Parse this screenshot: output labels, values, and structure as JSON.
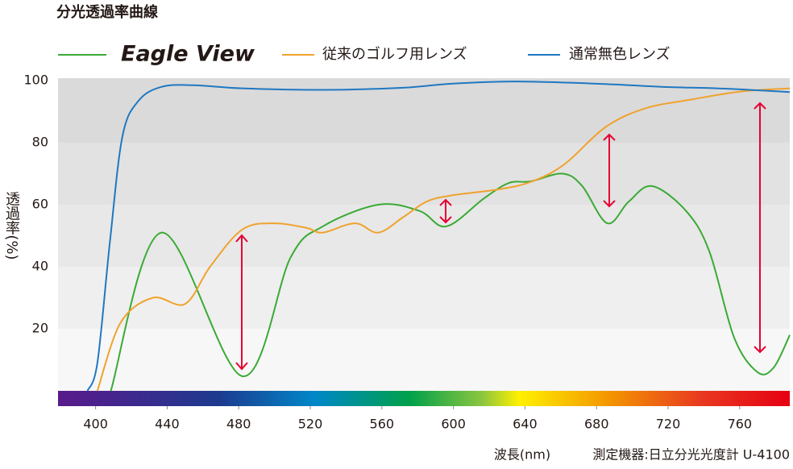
{
  "title": "分光透過率曲線",
  "chart_data": {
    "type": "line",
    "y_label": "透過率(%)",
    "x_label": "波長(nm)",
    "note": "測定機器:日立分光光度計 U-4100",
    "xlim": [
      379,
      788
    ],
    "ylim": [
      0,
      100
    ],
    "xticks": [
      400,
      440,
      480,
      520,
      560,
      600,
      640,
      680,
      720,
      760
    ],
    "yticks": [
      20,
      40,
      60,
      80,
      100
    ],
    "series": [
      {
        "name": "Eagle View",
        "color": "#3aaa35",
        "x": [
          408.5,
          437,
          482,
          509,
          527,
          558,
          581,
          596,
          617,
          631,
          643,
          661,
          672,
          686,
          698,
          711,
          730,
          743,
          757,
          770,
          779,
          788
        ],
        "values": [
          0,
          51,
          4.7,
          43,
          53,
          60,
          58,
          53,
          62,
          67,
          67.5,
          70,
          66,
          54,
          61,
          66,
          58,
          45,
          17,
          6,
          7.5,
          18
        ]
      },
      {
        "name": "従来のゴルフ用レンズ",
        "color": "#f0a22e",
        "x": [
          401,
          414,
          432,
          450,
          464,
          482,
          500,
          518,
          527,
          545,
          558,
          572,
          585,
          599,
          626,
          644,
          662,
          685,
          707,
          734,
          761,
          788
        ],
        "values": [
          0,
          22,
          30,
          28,
          40,
          52,
          54,
          52.5,
          51,
          54,
          51,
          56,
          61,
          63,
          65,
          67.5,
          73,
          85,
          91,
          94,
          96.5,
          97.5
        ]
      },
      {
        "name": "通常無色レンズ",
        "color": "#1f78c1",
        "x": [
          395.5,
          401,
          408,
          415,
          424,
          437,
          455,
          482,
          527,
          572,
          599,
          635,
          680,
          716,
          752,
          788
        ],
        "values": [
          0,
          9,
          48,
          82,
          93.5,
          98,
          98.5,
          97.5,
          97,
          97.7,
          99,
          99.7,
          99,
          98,
          97.4,
          96.3
        ]
      }
    ]
  }
}
